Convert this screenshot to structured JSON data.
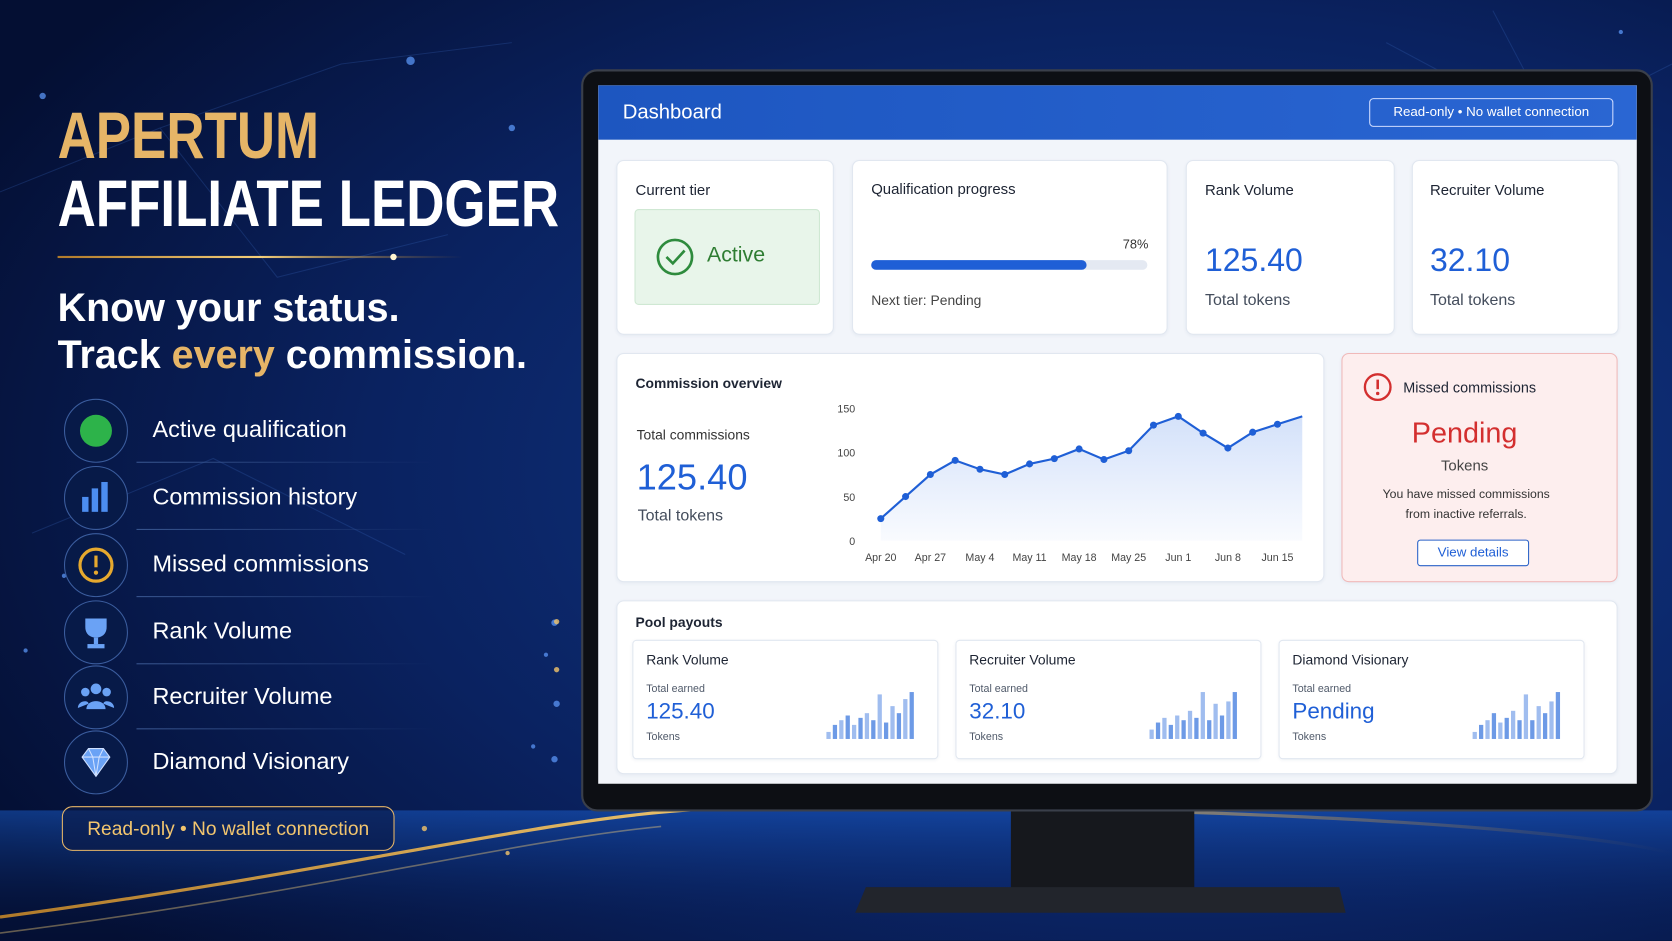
{
  "hero": {
    "title_line1": "APERTUM",
    "title_line2": "AFFILIATE LEDGER",
    "tagline_line1": "Know your status.",
    "tagline_line2": [
      "Track ",
      "every",
      " commission."
    ],
    "features": [
      "Active qualification",
      "Commission history",
      "Missed commissions",
      "Rank Volume",
      "Recruiter Volume",
      "Diamond Visionary"
    ],
    "badge": "Read-only • No wallet connection"
  },
  "dashboard": {
    "title": "Dashboard",
    "header_badge": "Read-only • No wallet connection",
    "current_tier": {
      "label": "Current tier",
      "status": "Active"
    },
    "qualification": {
      "label": "Qualification progress",
      "values": [
        78
      ],
      "value_labels": [
        "78%"
      ],
      "note": "Next tier: Pending"
    },
    "stats": [
      {
        "label": "Rank Volume",
        "value": "125.40",
        "unit": "Total tokens"
      },
      {
        "label": "Recruiter Volume",
        "value": "32.10",
        "unit": "Total tokens"
      }
    ],
    "commission_overview": {
      "title": "Commission overview",
      "total_label": "Total commissions",
      "total": "125.40",
      "unit": "Total tokens",
      "chart_data": {
        "type": "line",
        "color": "#1f5fd6",
        "categories": [
          "Apr 20",
          null,
          "Apr 27",
          null,
          "May 4",
          null,
          "May 11",
          null,
          "May 18",
          null,
          "May 25",
          null,
          "Jun 1",
          null,
          "Jun 8",
          null,
          "Jun 15",
          null
        ],
        "values": [
          25,
          50,
          75,
          91,
          81,
          75,
          87,
          93,
          104,
          92,
          102,
          131,
          141,
          122,
          105,
          123,
          132,
          141
        ],
        "ylim": [
          0,
          150
        ],
        "yticks": [
          0,
          50,
          100,
          150
        ],
        "grid": false
      }
    },
    "missed": {
      "title": "Missed commissions",
      "status": "Pending",
      "unit": "Tokens",
      "message_line1": "You have missed commissions",
      "message_line2": "from inactive referrals.",
      "button": "View details"
    },
    "pool_payouts": {
      "title": "Pool payouts",
      "items": [
        {
          "name": "Rank Volume",
          "earned_label": "Total earned",
          "value": "125.40",
          "unit": "Tokens",
          "chart_data": {
            "type": "bar",
            "color": "#6d9ae6",
            "values": [
              15,
              30,
              40,
              50,
              30,
              45,
              55,
              40,
              95,
              35,
              70,
              55,
              85,
              100
            ]
          }
        },
        {
          "name": "Recruiter Volume",
          "earned_label": "Total earned",
          "value": "32.10",
          "unit": "Tokens",
          "chart_data": {
            "type": "bar",
            "color": "#6d9ae6",
            "values": [
              20,
              35,
              45,
              30,
              50,
              40,
              60,
              45,
              100,
              40,
              75,
              50,
              80,
              100
            ]
          }
        },
        {
          "name": "Diamond Visionary",
          "earned_label": "Total earned",
          "value": "Pending",
          "unit": "Tokens",
          "chart_data": {
            "type": "bar",
            "color": "#6d9ae6",
            "values": [
              15,
              30,
              40,
              55,
              35,
              45,
              60,
              40,
              95,
              40,
              70,
              55,
              80,
              100
            ]
          }
        }
      ]
    }
  }
}
